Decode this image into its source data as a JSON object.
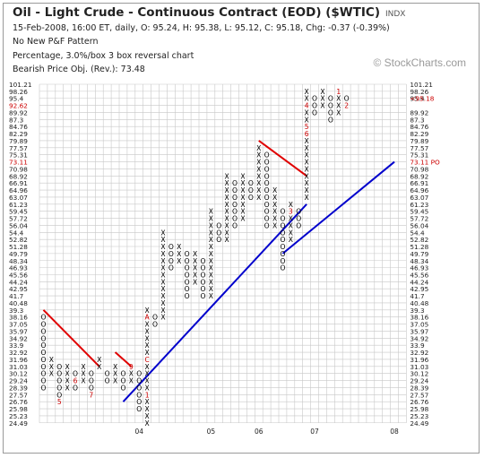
{
  "header": {
    "title": "Oil - Light Crude - Continuous Contract (EOD) ($WTIC)",
    "exchange": "INDX",
    "quote_line": "15-Feb-2008, 16:00 ET, daily, O: 95.24, H: 95.38, L: 95.12, C: 95.18, Chg: -0.37 (-0.39%)",
    "pattern_line": "No New P&F Pattern",
    "box_line": "Percentage, 3.0%/box 3 box reversal chart",
    "objective_line": "Bearish Price Obj. (Rev.): 73.48"
  },
  "watermark": "© StockCharts.com",
  "colors": {
    "grid": "#c8c8c8",
    "x_mark": "#000000",
    "o_mark": "#000000",
    "month_mark": "#cc0000",
    "resistance_line": "#e00000",
    "support_line": "#0000cc",
    "price_label": "#cc0000"
  },
  "chart_data": {
    "type": "point-and-figure",
    "box_size_percent": 3.0,
    "reversal_boxes": 3,
    "price_levels": [
      "101.21",
      "98.26",
      "95.4",
      "92.62",
      "89.92",
      "87.3",
      "84.76",
      "82.29",
      "79.89",
      "77.57",
      "75.31",
      "73.11",
      "70.98",
      "68.92",
      "66.91",
      "64.96",
      "63.07",
      "61.23",
      "59.45",
      "57.72",
      "56.04",
      "54.4",
      "52.82",
      "51.28",
      "49.79",
      "48.34",
      "46.93",
      "45.56",
      "44.24",
      "42.95",
      "41.7",
      "40.48",
      "39.3",
      "38.16",
      "37.05",
      "35.97",
      "34.92",
      "33.9",
      "32.92",
      "31.96",
      "31.03",
      "30.12",
      "29.24",
      "28.39",
      "27.57",
      "26.76",
      "25.98",
      "25.23",
      "24.49"
    ],
    "left_axis_labels": [
      "101.21",
      "98.26",
      "95.4",
      "92.62",
      "89.92",
      "87.3",
      "84.76",
      "82.29",
      "79.89",
      "77.57",
      "75.31",
      "73.11",
      "70.98",
      "68.92",
      "66.91",
      "64.96",
      "63.07",
      "61.23",
      "59.45",
      "57.72",
      "56.04",
      "54.4",
      "52.82",
      "51.28",
      "49.79",
      "48.34",
      "46.93",
      "45.56",
      "44.24",
      "42.95",
      "41.7",
      "40.48",
      "39.3",
      "38.16",
      "37.05",
      "35.97",
      "34.92",
      "33.9",
      "32.92",
      "31.96",
      "31.03",
      "30.12",
      "29.24",
      "28.39",
      "27.57",
      "26.76",
      "25.98",
      "25.23",
      "24.49"
    ],
    "right_axis_labels": [
      "101.21",
      "98.26",
      "95.4",
      "",
      "89.92",
      "87.3",
      "84.76",
      "82.29",
      "79.89",
      "77.57",
      "75.31",
      "",
      "70.98",
      "68.92",
      "66.91",
      "64.96",
      "63.07",
      "61.23",
      "59.45",
      "57.72",
      "56.04",
      "54.4",
      "52.82",
      "51.28",
      "49.79",
      "48.34",
      "46.93",
      "45.56",
      "44.24",
      "42.95",
      "41.7",
      "40.48",
      "39.3",
      "38.16",
      "37.05",
      "35.97",
      "34.92",
      "33.9",
      "32.92",
      "31.96",
      "31.03",
      "30.12",
      "29.24",
      "28.39",
      "27.57",
      "26.76",
      "25.98",
      "25.23",
      "24.49"
    ],
    "highlight_left": {
      "92.62": "92.62",
      "73.11": "73.11"
    },
    "highlight_right": [
      {
        "level": "95.4",
        "text": "<95.18"
      },
      {
        "level": "73.11",
        "text": "73.11 PO"
      }
    ],
    "columns": [
      {
        "type": "O",
        "marks": [
          "O",
          "O",
          "O",
          "O",
          "O",
          "O",
          "O",
          "O",
          "O",
          "O",
          "O"
        ],
        "top": 38.16
      },
      {
        "type": "X",
        "marks": [
          "X",
          "X",
          "X"
        ],
        "top": 31.96
      },
      {
        "type": "O",
        "marks": [
          "O",
          "O",
          "O",
          "O",
          "O",
          "5"
        ],
        "top": 31.03
      },
      {
        "type": "X",
        "marks": [
          "X",
          "X",
          "X",
          "X"
        ],
        "top": 31.03
      },
      {
        "type": "O",
        "marks": [
          "O",
          "6",
          "O"
        ],
        "top": 30.12
      },
      {
        "type": "X",
        "marks": [
          "X",
          "X",
          "X"
        ],
        "top": 31.03
      },
      {
        "type": "O",
        "marks": [
          "O",
          "O",
          "O",
          "7"
        ],
        "top": 30.12
      },
      {
        "type": "X",
        "marks": [
          "X",
          "X"
        ],
        "top": 31.96
      },
      {
        "type": "O",
        "marks": [
          "O",
          "O"
        ],
        "top": 30.12
      },
      {
        "type": "X",
        "marks": [
          "X",
          "X",
          "X"
        ],
        "top": 31.03
      },
      {
        "type": "O",
        "marks": [
          "O",
          "O",
          "O"
        ],
        "top": 30.12
      },
      {
        "type": "X",
        "marks": [
          "9",
          "X",
          "X"
        ],
        "top": 31.03
      },
      {
        "type": "O",
        "marks": [
          "O",
          "O",
          "O",
          "O",
          "O",
          "O"
        ],
        "top": 30.12
      },
      {
        "type": "X",
        "marks": [
          "X",
          "A",
          "X",
          "X",
          "X",
          "X",
          "X",
          "C",
          "X",
          "X",
          "X",
          "X",
          "1",
          "X",
          "X",
          "X",
          "X"
        ],
        "top": 39.3
      },
      {
        "type": "O",
        "marks": [
          "O",
          "O"
        ],
        "top": 38.16
      },
      {
        "type": "X",
        "marks": [
          "X",
          "X",
          "X",
          "X",
          "X",
          "X",
          "X",
          "X",
          "X",
          "X",
          "X",
          "X",
          "X"
        ],
        "top": 54.4
      },
      {
        "type": "O",
        "marks": [
          "O",
          "O",
          "O",
          "O"
        ],
        "top": 51.28
      },
      {
        "type": "X",
        "marks": [
          "X",
          "X",
          "X"
        ],
        "top": 51.28
      },
      {
        "type": "O",
        "marks": [
          "O",
          "O",
          "O",
          "O",
          "O",
          "O",
          "O"
        ],
        "top": 49.79
      },
      {
        "type": "X",
        "marks": [
          "X",
          "X",
          "X",
          "X",
          "X"
        ],
        "top": 49.79
      },
      {
        "type": "O",
        "marks": [
          "O",
          "O",
          "O",
          "O",
          "O",
          "O"
        ],
        "top": 48.34
      },
      {
        "type": "X",
        "marks": [
          "X",
          "X",
          "X",
          "X",
          "X",
          "X",
          "X",
          "X",
          "X",
          "X",
          "X",
          "X",
          "X"
        ],
        "top": 59.45
      },
      {
        "type": "O",
        "marks": [
          "O",
          "O",
          "O"
        ],
        "top": 56.04
      },
      {
        "type": "X",
        "marks": [
          "X",
          "X",
          "X",
          "X",
          "X",
          "X",
          "X",
          "X",
          "X",
          "X"
        ],
        "top": 68.92
      },
      {
        "type": "O",
        "marks": [
          "O",
          "O",
          "O",
          "O",
          "O",
          "O",
          "O"
        ],
        "top": 66.91
      },
      {
        "type": "X",
        "marks": [
          "X",
          "X",
          "X",
          "X",
          "X",
          "X",
          "X"
        ],
        "top": 68.92
      },
      {
        "type": "O",
        "marks": [
          "O",
          "O",
          "O"
        ],
        "top": 66.91
      },
      {
        "type": "X",
        "marks": [
          "X",
          "X",
          "X",
          "X",
          "X",
          "X",
          "X",
          "X"
        ],
        "top": 77.57
      },
      {
        "type": "O",
        "marks": [
          "O",
          "O",
          "O",
          "O",
          "O",
          "O",
          "O",
          "O",
          "O",
          "O",
          "O"
        ],
        "top": 75.31
      },
      {
        "type": "X",
        "marks": [
          "X",
          "X",
          "X",
          "X",
          "X",
          "X"
        ],
        "top": 64.96
      },
      {
        "type": "O",
        "marks": [
          "O",
          "O",
          "O",
          "O",
          "O",
          "O",
          "O",
          "O",
          "O"
        ],
        "top": 59.45
      },
      {
        "type": "X",
        "marks": [
          "X",
          "3",
          "X",
          "X",
          "X",
          "X"
        ],
        "top": 61.23
      },
      {
        "type": "O",
        "marks": [
          "O",
          "O",
          "O"
        ],
        "top": 59.45
      },
      {
        "type": "X",
        "marks": [
          "X",
          "X",
          "4",
          "X",
          "X",
          "5",
          "6",
          "X",
          "X",
          "X",
          "X",
          "X",
          "X",
          "X",
          "X",
          "X"
        ],
        "top": 98.26
      },
      {
        "type": "O",
        "marks": [
          "O",
          "O",
          "O"
        ],
        "top": 95.4
      },
      {
        "type": "X",
        "marks": [
          "X",
          "X",
          "X"
        ],
        "top": 98.26
      },
      {
        "type": "O",
        "marks": [
          "O",
          "O",
          "O",
          "O"
        ],
        "top": 95.4
      },
      {
        "type": "X",
        "marks": [
          "1",
          "X",
          "X",
          "X"
        ],
        "top": 98.26
      },
      {
        "type": "O",
        "marks": [
          "O",
          "2"
        ],
        "top": 95.4
      }
    ],
    "x_axis_labels": [
      {
        "text": "04",
        "column": 12
      },
      {
        "text": "05",
        "column": 21
      },
      {
        "text": "06",
        "column": 27
      },
      {
        "text": "07",
        "column": 34
      },
      {
        "text": "08",
        "column": 44
      }
    ],
    "trendlines": [
      {
        "type": "resistance",
        "from": {
          "column": 0,
          "level": "39.3"
        },
        "to": {
          "column": 7,
          "level": "31.03"
        }
      },
      {
        "type": "resistance",
        "from": {
          "column": 9,
          "level": "32.92"
        },
        "to": {
          "column": 11,
          "level": "31.03"
        }
      },
      {
        "type": "resistance",
        "from": {
          "column": 27,
          "level": "79.89"
        },
        "to": {
          "column": 33,
          "level": "68.92"
        }
      },
      {
        "type": "support",
        "from": {
          "column": 10,
          "level": "26.76"
        },
        "to": {
          "column": 33,
          "level": "61.23"
        }
      },
      {
        "type": "support",
        "from": {
          "column": 30,
          "level": "49.79"
        },
        "to": {
          "column": 44,
          "level": "73.11"
        }
      }
    ]
  }
}
